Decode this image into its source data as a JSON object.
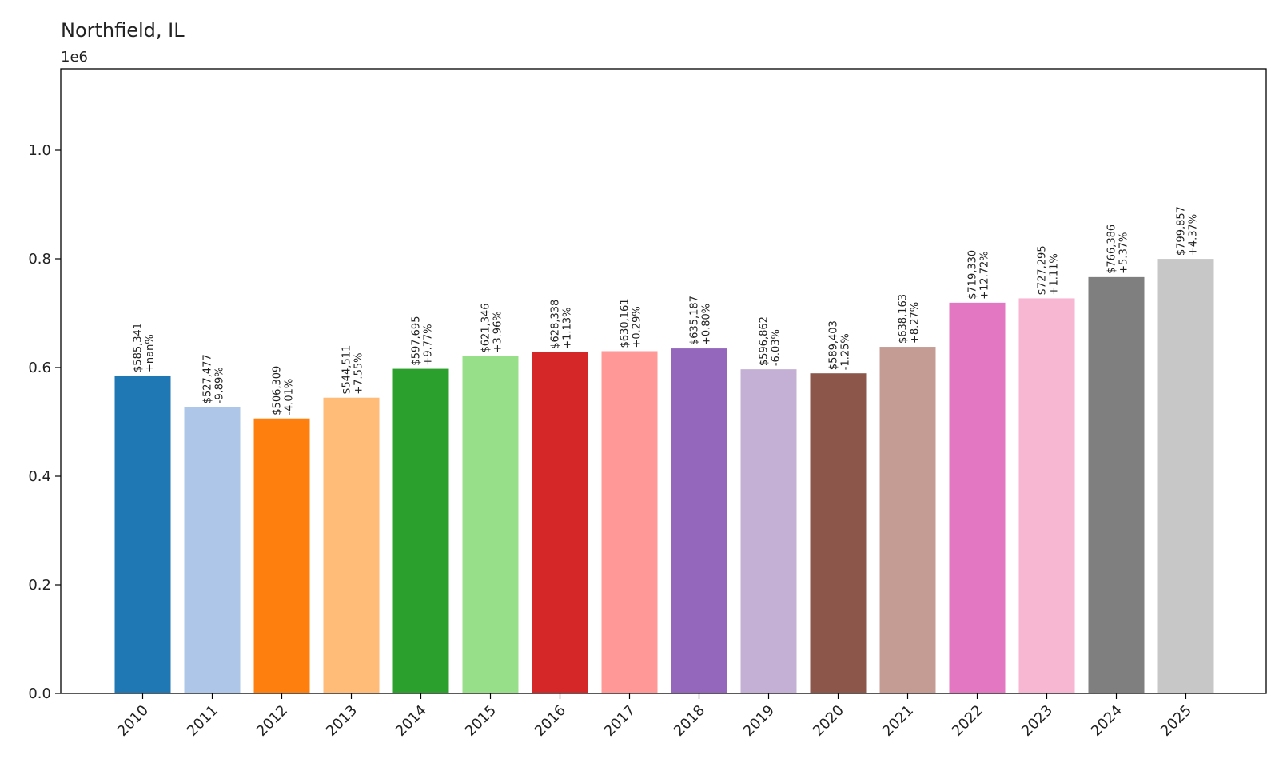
{
  "chart_data": {
    "type": "bar",
    "title": "Northfield, IL",
    "offset_label": "1e6",
    "ylim": [
      0,
      1150000
    ],
    "y_ticks": [
      {
        "value": 0,
        "label": "0.0"
      },
      {
        "value": 200000,
        "label": "0.2"
      },
      {
        "value": 400000,
        "label": "0.4"
      },
      {
        "value": 600000,
        "label": "0.6"
      },
      {
        "value": 800000,
        "label": "0.8"
      },
      {
        "value": 1000000,
        "label": "1.0"
      }
    ],
    "grid": false,
    "bars": [
      {
        "category": "2010",
        "value": 585341,
        "price_label": "$585,341",
        "change_label": "+nan%",
        "color": "#1f77b4"
      },
      {
        "category": "2011",
        "value": 527477,
        "price_label": "$527,477",
        "change_label": "-9.89%",
        "color": "#aec7e8"
      },
      {
        "category": "2012",
        "value": 506309,
        "price_label": "$506,309",
        "change_label": "-4.01%",
        "color": "#ff7f0e"
      },
      {
        "category": "2013",
        "value": 544511,
        "price_label": "$544,511",
        "change_label": "+7.55%",
        "color": "#ffbb78"
      },
      {
        "category": "2014",
        "value": 597695,
        "price_label": "$597,695",
        "change_label": "+9.77%",
        "color": "#2ca02c"
      },
      {
        "category": "2015",
        "value": 621346,
        "price_label": "$621,346",
        "change_label": "+3.96%",
        "color": "#98df8a"
      },
      {
        "category": "2016",
        "value": 628338,
        "price_label": "$628,338",
        "change_label": "+1.13%",
        "color": "#d62728"
      },
      {
        "category": "2017",
        "value": 630161,
        "price_label": "$630,161",
        "change_label": "+0.29%",
        "color": "#ff9896"
      },
      {
        "category": "2018",
        "value": 635187,
        "price_label": "$635,187",
        "change_label": "+0.80%",
        "color": "#9467bd"
      },
      {
        "category": "2019",
        "value": 596862,
        "price_label": "$596,862",
        "change_label": "-6.03%",
        "color": "#c5b0d5"
      },
      {
        "category": "2020",
        "value": 589403,
        "price_label": "$589,403",
        "change_label": "-1.25%",
        "color": "#8c564b"
      },
      {
        "category": "2021",
        "value": 638163,
        "price_label": "$638,163",
        "change_label": "+8.27%",
        "color": "#c49c94"
      },
      {
        "category": "2022",
        "value": 719330,
        "price_label": "$719,330",
        "change_label": "+12.72%",
        "color": "#e377c2"
      },
      {
        "category": "2023",
        "value": 727295,
        "price_label": "$727,295",
        "change_label": "+1.11%",
        "color": "#f7b6d2"
      },
      {
        "category": "2024",
        "value": 766386,
        "price_label": "$766,386",
        "change_label": "+5.37%",
        "color": "#7f7f7f"
      },
      {
        "category": "2025",
        "value": 799857,
        "price_label": "$799,857",
        "change_label": "+4.37%",
        "color": "#c7c7c7"
      }
    ]
  }
}
